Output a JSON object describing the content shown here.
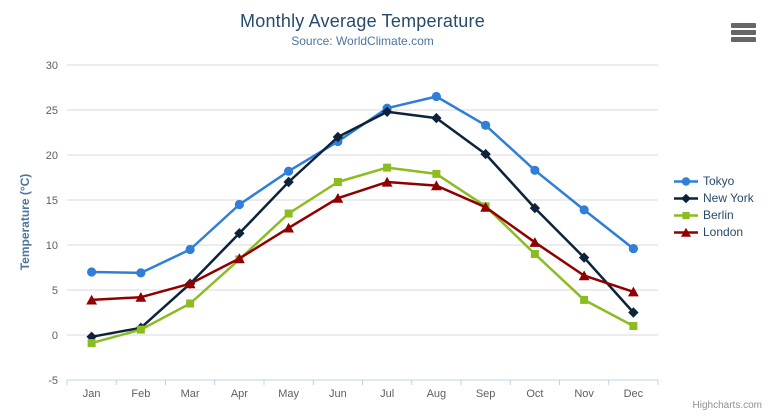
{
  "chart_data": {
    "type": "line",
    "title": "Monthly Average Temperature",
    "subtitle": "Source: WorldClimate.com",
    "xlabel": "",
    "ylabel": "Temperature (°C)",
    "categories": [
      "Jan",
      "Feb",
      "Mar",
      "Apr",
      "May",
      "Jun",
      "Jul",
      "Aug",
      "Sep",
      "Oct",
      "Nov",
      "Dec"
    ],
    "ylim": [
      -5,
      30
    ],
    "ytick": 5,
    "grid": true,
    "legend_position": "right",
    "series": [
      {
        "name": "Tokyo",
        "color": "#2f7ed8",
        "marker": "circle",
        "values": [
          7.0,
          6.9,
          9.5,
          14.5,
          18.2,
          21.5,
          25.2,
          26.5,
          23.3,
          18.3,
          13.9,
          9.6
        ]
      },
      {
        "name": "New York",
        "color": "#0d233a",
        "marker": "diamond",
        "values": [
          -0.2,
          0.8,
          5.7,
          11.3,
          17.0,
          22.0,
          24.8,
          24.1,
          20.1,
          14.1,
          8.6,
          2.5
        ]
      },
      {
        "name": "Berlin",
        "color": "#8bbc21",
        "marker": "square",
        "values": [
          -0.9,
          0.6,
          3.5,
          8.4,
          13.5,
          17.0,
          18.6,
          17.9,
          14.3,
          9.0,
          3.9,
          1.0
        ]
      },
      {
        "name": "London",
        "color": "#910000",
        "marker": "triangle",
        "values": [
          3.9,
          4.2,
          5.7,
          8.5,
          11.9,
          15.2,
          17.0,
          16.6,
          14.2,
          10.3,
          6.6,
          4.8
        ]
      }
    ],
    "colors": {
      "title": "#274b6d",
      "subtitle": "#4d759e",
      "axis_title": "#4d759e",
      "axis_label": "#606060",
      "grid": "#d8d8d8",
      "axis_line": "#c0d0e0",
      "legend_text": "#274b6d",
      "credit": "#909090",
      "menu_icon": "#666666"
    }
  },
  "credit": "Highcharts.com"
}
